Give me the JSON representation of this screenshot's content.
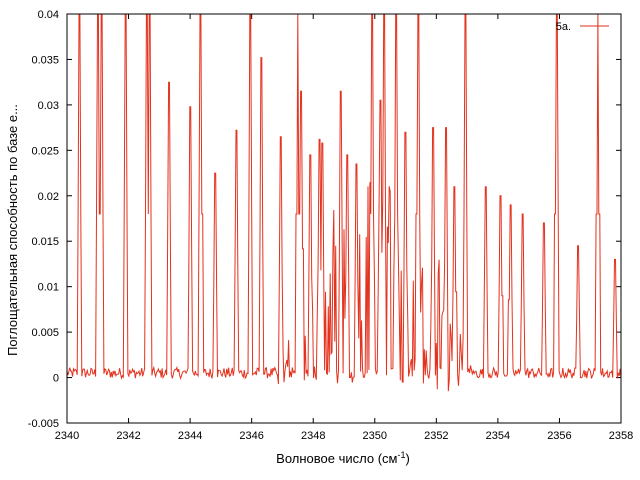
{
  "chart_data": {
    "type": "line",
    "title": "",
    "xlabel": "Волновое число (см",
    "xlabel_sup": "-1",
    "xlabel_tail": ")",
    "ylabel": "Поглощательная способность по базе е...",
    "xlim": [
      2340,
      2358
    ],
    "ylim": [
      -0.005,
      0.04
    ],
    "xticks": [
      2340,
      2342,
      2344,
      2346,
      2348,
      2350,
      2352,
      2354,
      2356,
      2358
    ],
    "yticks": [
      -0.005,
      0,
      0.005,
      0.01,
      0.015,
      0.02,
      0.025,
      0.03,
      0.035,
      0.04
    ],
    "ytick_labels": [
      "-0.005",
      "0",
      "0.005",
      "0.01",
      "0.015",
      "0.02",
      "0.025",
      "0.03",
      "0.035",
      "0.04"
    ],
    "grid": false,
    "legend_position": "top-right",
    "series": [
      {
        "name": "5a.",
        "color": "#e3321e",
        "baseline": 0.0005,
        "noise_amplitude": 0.0012,
        "peaks": [
          {
            "x": 2340.4,
            "y": 0.04
          },
          {
            "x": 2341.0,
            "y": 0.04
          },
          {
            "x": 2341.12,
            "y": 0.04
          },
          {
            "x": 2341.9,
            "y": 0.04
          },
          {
            "x": 2342.6,
            "y": 0.04
          },
          {
            "x": 2342.7,
            "y": 0.04
          },
          {
            "x": 2343.3,
            "y": 0.0325
          },
          {
            "x": 2344.0,
            "y": 0.0298
          },
          {
            "x": 2344.35,
            "y": 0.04
          },
          {
            "x": 2344.8,
            "y": 0.0225
          },
          {
            "x": 2345.5,
            "y": 0.0272
          },
          {
            "x": 2345.95,
            "y": 0.04
          },
          {
            "x": 2346.3,
            "y": 0.0352
          },
          {
            "x": 2346.95,
            "y": 0.0265
          },
          {
            "x": 2347.5,
            "y": 0.04
          },
          {
            "x": 2347.62,
            "y": 0.0315
          },
          {
            "x": 2347.9,
            "y": 0.0245
          },
          {
            "x": 2348.2,
            "y": 0.0262
          },
          {
            "x": 2348.28,
            "y": 0.0258
          },
          {
            "x": 2348.9,
            "y": 0.0315
          },
          {
            "x": 2349.1,
            "y": 0.0245
          },
          {
            "x": 2349.4,
            "y": 0.0235
          },
          {
            "x": 2349.9,
            "y": 0.04
          },
          {
            "x": 2350.2,
            "y": 0.0305
          },
          {
            "x": 2350.3,
            "y": 0.04
          },
          {
            "x": 2350.7,
            "y": 0.04
          },
          {
            "x": 2351.0,
            "y": 0.027
          },
          {
            "x": 2351.4,
            "y": 0.04
          },
          {
            "x": 2351.9,
            "y": 0.0275
          },
          {
            "x": 2352.3,
            "y": 0.0275
          },
          {
            "x": 2352.6,
            "y": 0.021
          },
          {
            "x": 2352.95,
            "y": 0.04
          },
          {
            "x": 2353.6,
            "y": 0.021
          },
          {
            "x": 2354.1,
            "y": 0.02
          },
          {
            "x": 2354.4,
            "y": 0.019
          },
          {
            "x": 2354.8,
            "y": 0.018
          },
          {
            "x": 2355.5,
            "y": 0.017
          },
          {
            "x": 2355.9,
            "y": 0.04
          },
          {
            "x": 2356.6,
            "y": 0.0145
          },
          {
            "x": 2357.25,
            "y": 0.04
          },
          {
            "x": 2357.8,
            "y": 0.013
          }
        ]
      }
    ]
  }
}
